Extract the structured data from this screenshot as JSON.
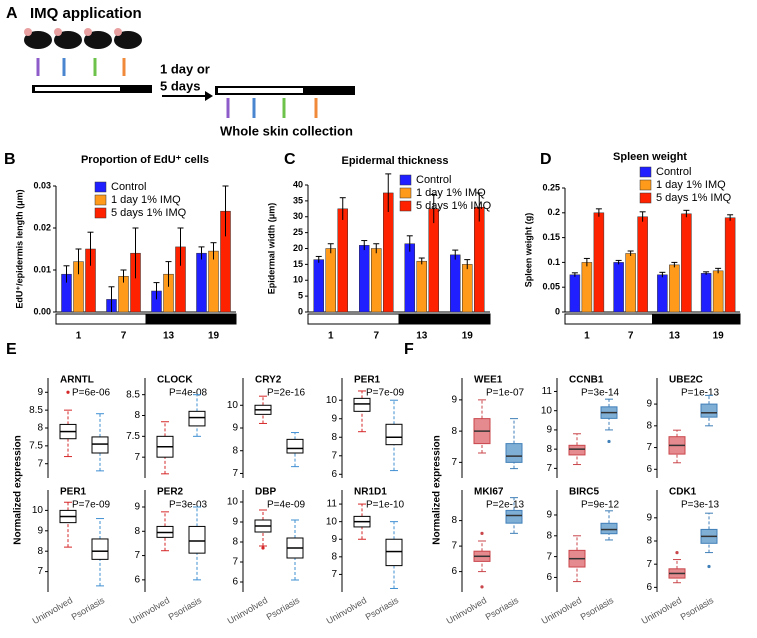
{
  "diagram": {
    "panel": "A",
    "title": "IMQ application",
    "duration": [
      "1 day or",
      "5 days"
    ],
    "collection": "Whole skin collection"
  },
  "chart_data": [
    {
      "type": "bar",
      "panel": "B",
      "title": "Proportion of EdU⁺ cells",
      "ylabel": "EdU⁺/epidermis length (μm)",
      "categories": [
        "1",
        "7",
        "13",
        "19"
      ],
      "series": [
        {
          "name": "Control",
          "color": "#1f1fff",
          "values": [
            0.009,
            0.003,
            0.005,
            0.014
          ],
          "errors": [
            0.002,
            0.003,
            0.002,
            0.0015
          ]
        },
        {
          "name": "1 day 1% IMQ",
          "color": "#ff9a1a",
          "values": [
            0.012,
            0.0085,
            0.009,
            0.0145
          ],
          "errors": [
            0.003,
            0.0015,
            0.003,
            0.002
          ]
        },
        {
          "name": "5 days 1% IMQ",
          "color": "#ff2200",
          "values": [
            0.015,
            0.014,
            0.0155,
            0.024
          ],
          "errors": [
            0.004,
            0.006,
            0.0045,
            0.006
          ]
        }
      ],
      "ylim": [
        0,
        0.03
      ],
      "yticks": [
        {
          "value": 0,
          "label": "0.00"
        },
        0.01,
        0.02,
        0.03
      ]
    },
    {
      "type": "bar",
      "panel": "C",
      "title": "Epidermal thickness",
      "ylabel": "Epidermal width (μm)",
      "categories": [
        "1",
        "7",
        "13",
        "19"
      ],
      "series": [
        {
          "name": "Control",
          "color": "#1f1fff",
          "values": [
            16.5,
            21,
            21.5,
            18
          ],
          "errors": [
            1,
            1.5,
            2.5,
            1.5
          ]
        },
        {
          "name": "1 day 1% IMQ",
          "color": "#ff9a1a",
          "values": [
            20,
            20,
            16,
            15
          ],
          "errors": [
            1.5,
            1.5,
            1,
            1.5
          ]
        },
        {
          "name": "5 days 1% IMQ",
          "color": "#ff2200",
          "values": [
            32.5,
            37.5,
            32.5,
            33
          ],
          "errors": [
            3.5,
            6,
            4.5,
            4.5
          ]
        }
      ],
      "ylim": [
        0,
        40
      ],
      "yticks": [
        0,
        5,
        10,
        15,
        20,
        25,
        30,
        35,
        40
      ]
    },
    {
      "type": "bar",
      "panel": "D",
      "title": "Spleen weight",
      "ylabel": "Spleen weight (g)",
      "categories": [
        "1",
        "7",
        "13",
        "19"
      ],
      "series": [
        {
          "name": "Control",
          "color": "#1f1fff",
          "values": [
            0.075,
            0.1,
            0.075,
            0.078
          ],
          "errors": [
            0.004,
            0.004,
            0.005,
            0.003
          ]
        },
        {
          "name": "1 day 1% IMQ",
          "color": "#ff9a1a",
          "values": [
            0.1,
            0.118,
            0.095,
            0.083
          ],
          "errors": [
            0.008,
            0.005,
            0.005,
            0.005
          ]
        },
        {
          "name": "5 days 1% IMQ",
          "color": "#ff2200",
          "values": [
            0.2,
            0.192,
            0.198,
            0.19
          ],
          "errors": [
            0.008,
            0.01,
            0.007,
            0.006
          ]
        }
      ],
      "ylim": [
        0,
        0.25
      ],
      "yticks": [
        0,
        0.05,
        0.1,
        0.15,
        0.2,
        0.25
      ]
    },
    {
      "type": "box",
      "panel": "E",
      "ylabel": "Normalized expression",
      "groups": [
        "Uninvolved",
        "Psoriasis"
      ],
      "colors": [
        "#d62728",
        "#3f8fd2"
      ],
      "box_fill": false,
      "subplots": [
        {
          "title": "ARNTL",
          "annotation": "P=6e-06",
          "ylim": [
            6.6,
            9.4
          ],
          "yticks": [
            7,
            7.5,
            8,
            8.5,
            9
          ],
          "boxes": [
            {
              "min": 7.2,
              "q1": 7.7,
              "median": 7.9,
              "q3": 8.1,
              "max": 8.5,
              "outliers": [
                9
              ]
            },
            {
              "min": 6.8,
              "q1": 7.3,
              "median": 7.55,
              "q3": 7.75,
              "max": 8.4
            }
          ]
        },
        {
          "title": "CLOCK",
          "annotation": "P=4e-08",
          "ylim": [
            6.5,
            8.9
          ],
          "yticks": [
            7,
            7.5,
            8,
            8.5
          ],
          "boxes": [
            {
              "min": 6.6,
              "q1": 7,
              "median": 7.25,
              "q3": 7.5,
              "max": 7.85
            },
            {
              "min": 7.5,
              "q1": 7.75,
              "median": 7.95,
              "q3": 8.1,
              "max": 8.5
            }
          ]
        },
        {
          "title": "CRY2",
          "annotation": "P=2e-16",
          "ylim": [
            6.8,
            11.2
          ],
          "yticks": [
            7,
            8,
            9,
            10
          ],
          "boxes": [
            {
              "min": 9.2,
              "q1": 9.6,
              "median": 9.8,
              "q3": 10,
              "max": 10.4
            },
            {
              "min": 7.3,
              "q1": 7.9,
              "median": 8.1,
              "q3": 8.5,
              "max": 8.8
            }
          ]
        },
        {
          "title": "PER1",
          "annotation": "P=7e-09",
          "ylim": [
            5.8,
            11.2
          ],
          "yticks": [
            6,
            7,
            8,
            9,
            10
          ],
          "boxes": [
            {
              "min": 8.3,
              "q1": 9.4,
              "median": 9.8,
              "q3": 10.1,
              "max": 10.5
            },
            {
              "min": 6.2,
              "q1": 7.6,
              "median": 8,
              "q3": 8.7,
              "max": 10
            }
          ]
        },
        {
          "title": "PER1",
          "annotation": "P=7e-09",
          "ylim": [
            6,
            11
          ],
          "yticks": [
            7,
            8,
            9,
            10
          ],
          "boxes": [
            {
              "min": 8.2,
              "q1": 9.4,
              "median": 9.7,
              "q3": 10,
              "max": 10.4
            },
            {
              "min": 6.3,
              "q1": 7.6,
              "median": 8,
              "q3": 8.6,
              "max": 9.6
            }
          ]
        },
        {
          "title": "PER2",
          "annotation": "P=3e-03",
          "ylim": [
            5.5,
            9.7
          ],
          "yticks": [
            6,
            7,
            8,
            9
          ],
          "boxes": [
            {
              "min": 7.2,
              "q1": 7.75,
              "median": 7.95,
              "q3": 8.2,
              "max": 8.8
            },
            {
              "min": 6,
              "q1": 7.1,
              "median": 7.6,
              "q3": 8.2,
              "max": 9
            }
          ]
        },
        {
          "title": "DBP",
          "annotation": "P=4e-09",
          "ylim": [
            5.5,
            10.6
          ],
          "yticks": [
            6,
            7,
            8,
            9,
            10
          ],
          "boxes": [
            {
              "min": 7.8,
              "q1": 8.5,
              "median": 8.8,
              "q3": 9.1,
              "max": 9.6,
              "outliers": [
                7.7
              ]
            },
            {
              "min": 6.1,
              "q1": 7.2,
              "median": 7.7,
              "q3": 8.2,
              "max": 9.1
            }
          ]
        },
        {
          "title": "NR1D1",
          "annotation": "P=1e-10",
          "ylim": [
            6,
            11.8
          ],
          "yticks": [
            7,
            8,
            9,
            10,
            11
          ],
          "boxes": [
            {
              "min": 9,
              "q1": 9.7,
              "median": 10,
              "q3": 10.3,
              "max": 11
            },
            {
              "min": 6.2,
              "q1": 7.5,
              "median": 8.3,
              "q3": 9,
              "max": 10
            }
          ]
        }
      ]
    },
    {
      "type": "box",
      "panel": "F",
      "ylabel": "Normalized expression",
      "groups": [
        "Uninvolved",
        "Psoriasis"
      ],
      "colors": [
        "#c9464b",
        "#3f7fb8"
      ],
      "fills": [
        "#e58a8e",
        "#80afd6"
      ],
      "box_fill": true,
      "subplots": [
        {
          "title": "WEE1",
          "annotation": "P=1e-07",
          "ylim": [
            6.5,
            9.7
          ],
          "yticks": [
            7,
            8,
            9
          ],
          "boxes": [
            {
              "min": 7.3,
              "q1": 7.6,
              "median": 8,
              "q3": 8.4,
              "max": 9
            },
            {
              "min": 6.8,
              "q1": 7,
              "median": 7.2,
              "q3": 7.6,
              "max": 8.4
            }
          ]
        },
        {
          "title": "CCNB1",
          "annotation": "P=3e-14",
          "ylim": [
            6.5,
            11.7
          ],
          "yticks": [
            7,
            8,
            9,
            10,
            11
          ],
          "boxes": [
            {
              "min": 7.2,
              "q1": 7.7,
              "median": 8,
              "q3": 8.2,
              "max": 8.8
            },
            {
              "min": 9,
              "q1": 9.6,
              "median": 9.9,
              "q3": 10.2,
              "max": 10.6,
              "outliers": [
                8.4
              ]
            }
          ]
        },
        {
          "title": "UBE2C",
          "annotation": "P=1e-13",
          "ylim": [
            5.6,
            10.2
          ],
          "yticks": [
            6,
            7,
            8,
            9
          ],
          "boxes": [
            {
              "min": 6.3,
              "q1": 6.7,
              "median": 7.1,
              "q3": 7.5,
              "max": 7.8
            },
            {
              "min": 8,
              "q1": 8.4,
              "median": 8.6,
              "q3": 9,
              "max": 9.4
            }
          ]
        },
        {
          "title": "MKI67",
          "annotation": "P=2e-13",
          "ylim": [
            5.2,
            9.2
          ],
          "yticks": [
            6,
            7,
            8
          ],
          "boxes": [
            {
              "min": 6,
              "q1": 6.4,
              "median": 6.6,
              "q3": 6.8,
              "max": 7.2,
              "outliers": [
                7.5,
                5.4
              ]
            },
            {
              "min": 7.5,
              "q1": 7.9,
              "median": 8.2,
              "q3": 8.4,
              "max": 8.9
            }
          ]
        },
        {
          "title": "BIRC5",
          "annotation": "P=9e-12",
          "ylim": [
            5.3,
            10.2
          ],
          "yticks": [
            6,
            7,
            8,
            9
          ],
          "boxes": [
            {
              "min": 5.8,
              "q1": 6.5,
              "median": 6.9,
              "q3": 7.3,
              "max": 8
            },
            {
              "min": 7.8,
              "q1": 8.1,
              "median": 8.3,
              "q3": 8.6,
              "max": 9.2
            }
          ]
        },
        {
          "title": "CDK1",
          "annotation": "P=3e-13",
          "ylim": [
            5.8,
            10.2
          ],
          "yticks": [
            6,
            7,
            8,
            9
          ],
          "boxes": [
            {
              "min": 6.2,
              "q1": 6.4,
              "median": 6.6,
              "q3": 6.8,
              "max": 7.2,
              "outliers": [
                7.5
              ]
            },
            {
              "min": 7.5,
              "q1": 7.9,
              "median": 8.2,
              "q3": 8.5,
              "max": 9.2,
              "outliers": [
                6.9
              ]
            }
          ]
        }
      ]
    }
  ]
}
